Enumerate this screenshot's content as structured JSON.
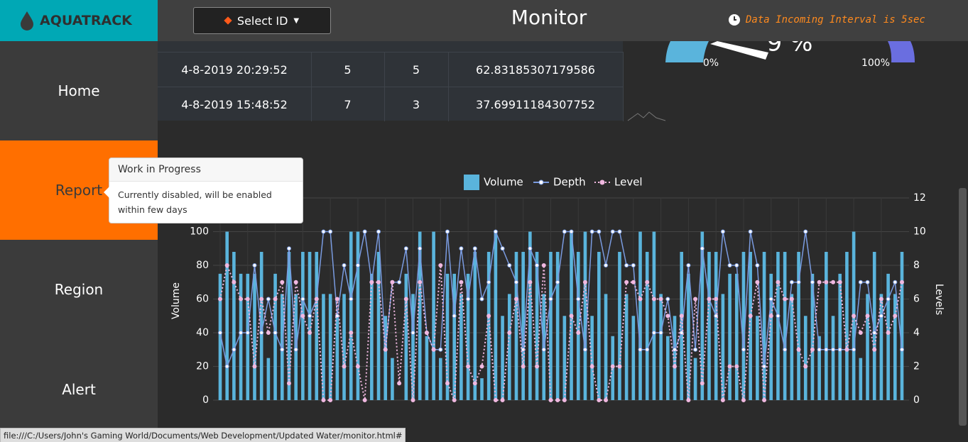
{
  "header": {
    "logo": "AQUATRACK",
    "select": "Select ID",
    "title": "Monitor",
    "interval": "Data Incoming Interval is 5sec"
  },
  "nav": [
    "Home",
    "Report",
    "Region",
    "Alert"
  ],
  "table": {
    "rows": [
      [
        "4-8-2019 20:29:52",
        "5",
        "5",
        "62.83185307179586"
      ],
      [
        "4-8-2019 15:48:52",
        "7",
        "3",
        "37.69911184307752"
      ]
    ]
  },
  "gauge": {
    "min_label": "0%",
    "max_label": "100%",
    "value_label": "9 %"
  },
  "tooltip": {
    "title": "Work in Progress",
    "body": "Currently disabled, will be enabled within few days"
  },
  "status_bar": "file:///C:/Users/John's Gaming World/Documents/Web Development/Updated Water/monitor.html#",
  "chart_data": {
    "type": "bar",
    "ylabel": "Volume",
    "y2label": "Levels",
    "ylim": [
      0,
      120
    ],
    "yticks": [
      0,
      20,
      40,
      60,
      80,
      100
    ],
    "y2lim": [
      0,
      12
    ],
    "y2ticks": [
      0,
      2,
      4,
      6,
      8,
      10,
      12
    ],
    "grid": true,
    "series": [
      {
        "name": "Volume",
        "type": "bar",
        "color": "#5ab4dc",
        "values": [
          75,
          100,
          88,
          75,
          75,
          75,
          88,
          25,
          75,
          63,
          88,
          63,
          88,
          88,
          88,
          63,
          63,
          50,
          63,
          100,
          100,
          0,
          75,
          88,
          50,
          25,
          0,
          75,
          63,
          100,
          38,
          100,
          25,
          75,
          75,
          63,
          75,
          88,
          13,
          88,
          100,
          50,
          63,
          88,
          88,
          100,
          88,
          63,
          88,
          88,
          50,
          100,
          88,
          100,
          50,
          88,
          63,
          38,
          88,
          63,
          50,
          100,
          88,
          100,
          63,
          38,
          50,
          88,
          75,
          25,
          100,
          88,
          88,
          63,
          75,
          75,
          88,
          88,
          50,
          88,
          75,
          88,
          88,
          63,
          88,
          50,
          75,
          38,
          88,
          50,
          75,
          88,
          100,
          25,
          63,
          88,
          63,
          75,
          63,
          88
        ]
      },
      {
        "name": "Depth",
        "type": "line",
        "axis": "y2",
        "color": "#7a9be0",
        "values": [
          4,
          2,
          3,
          4,
          4,
          8,
          4,
          6,
          4,
          3,
          9,
          3,
          6,
          5,
          6,
          10,
          10,
          5,
          8,
          6,
          8,
          10,
          7,
          10,
          3,
          7,
          7,
          9,
          4,
          9,
          4,
          3,
          3,
          10,
          5,
          9,
          6,
          9,
          6,
          7,
          10,
          9,
          8,
          7,
          3,
          9,
          8,
          3,
          6,
          7,
          10,
          10,
          6,
          3,
          10,
          10,
          8,
          10,
          10,
          8,
          8,
          3,
          3,
          4,
          4,
          6,
          3,
          4,
          8,
          3,
          9,
          6,
          5,
          10,
          8,
          8,
          3,
          10,
          8,
          2,
          6,
          5,
          3,
          7,
          7,
          10,
          7,
          3,
          3,
          3,
          3,
          3,
          3,
          7,
          7,
          4,
          5,
          6,
          7,
          3
        ]
      },
      {
        "name": "Level",
        "type": "dotted",
        "axis": "y2",
        "color": "#f0b8e0",
        "values": [
          6,
          8,
          7,
          6,
          6,
          2,
          6,
          4,
          6,
          7,
          1,
          7,
          5,
          4,
          6,
          0,
          0,
          6,
          2,
          4,
          2,
          0,
          7,
          7,
          3,
          7,
          1,
          6,
          0,
          7,
          4,
          3,
          8,
          1,
          0,
          7,
          2,
          1,
          2,
          5,
          0,
          0,
          4,
          6,
          2,
          7,
          2,
          8,
          0,
          0,
          0,
          5,
          4,
          7,
          2,
          0,
          0,
          2,
          2,
          7,
          7,
          6,
          7,
          6,
          6,
          5,
          2,
          5,
          0,
          6,
          1,
          6,
          6,
          0,
          2,
          2,
          0,
          5,
          7,
          0,
          5,
          7,
          6,
          6,
          3,
          2,
          3,
          7,
          7,
          7,
          7,
          3,
          5,
          4,
          5,
          3,
          6,
          4,
          5,
          7
        ]
      }
    ]
  }
}
